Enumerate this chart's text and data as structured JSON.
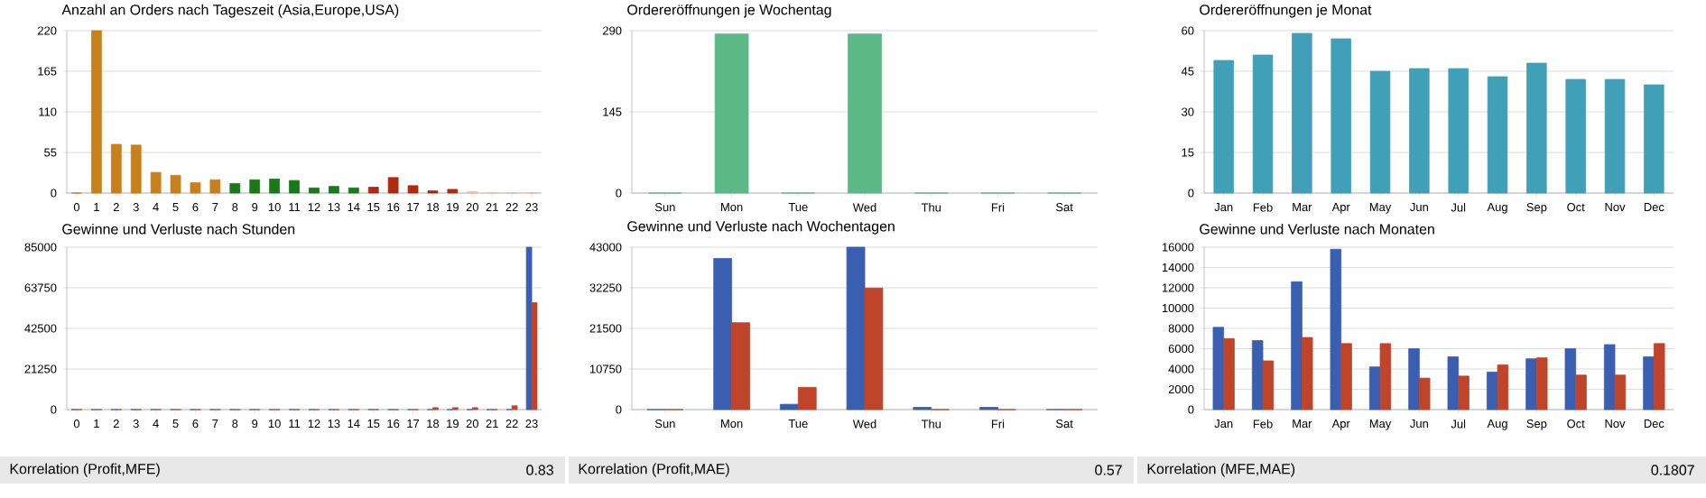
{
  "chart_data": [
    {
      "type": "bar",
      "title": "Anzahl an Orders nach Tageszeit (Asia,Europe,USA)",
      "categories": [
        "0",
        "1",
        "2",
        "3",
        "4",
        "5",
        "6",
        "7",
        "8",
        "9",
        "10",
        "11",
        "12",
        "13",
        "14",
        "15",
        "16",
        "17",
        "18",
        "19",
        "20",
        "21",
        "22",
        "23"
      ],
      "values": [
        0,
        220,
        66,
        65,
        28,
        24,
        14,
        18,
        13,
        18,
        19,
        17,
        7,
        9,
        7,
        8,
        21,
        10,
        3,
        5,
        2,
        0,
        0,
        0
      ],
      "colors": [
        "#c8801a",
        "#c8801a",
        "#c8801a",
        "#c8801a",
        "#c8801a",
        "#c8801a",
        "#c8801a",
        "#c8801a",
        "#1a7a1a",
        "#1a7a1a",
        "#1a7a1a",
        "#1a7a1a",
        "#1a7a1a",
        "#1a7a1a",
        "#1a7a1a",
        "#b02a10",
        "#b02a10",
        "#b02a10",
        "#b02a10",
        "#b02a10",
        "#f4b8a8",
        "#f4b8a8",
        "#f4b8a8",
        "#f4b8a8"
      ],
      "ylim": [
        0,
        220
      ],
      "yticks": [
        0,
        55,
        110,
        165,
        220
      ],
      "grid": "y"
    },
    {
      "type": "bar",
      "title": "Ordereröffnungen je Wochentag",
      "categories": [
        "Sun",
        "Mon",
        "Tue",
        "Wed",
        "Thu",
        "Fri",
        "Sat"
      ],
      "values": [
        0,
        284,
        0,
        284,
        0,
        0,
        0
      ],
      "color": "#5cb885",
      "ylim": [
        0,
        290
      ],
      "yticks": [
        0,
        145,
        290
      ],
      "grid": "y"
    },
    {
      "type": "bar",
      "title": "Ordereröffnungen je Monat",
      "categories": [
        "Jan",
        "Feb",
        "Mar",
        "Apr",
        "May",
        "Jun",
        "Jul",
        "Aug",
        "Sep",
        "Oct",
        "Nov",
        "Dec"
      ],
      "values": [
        49,
        51,
        59,
        57,
        45,
        46,
        46,
        43,
        48,
        42,
        42,
        40
      ],
      "color": "#3fa0b8",
      "ylim": [
        0,
        60
      ],
      "yticks": [
        0,
        15,
        30,
        45,
        60
      ],
      "grid": "y"
    },
    {
      "type": "bar",
      "title": "Gewinne und Verluste nach Stunden",
      "categories": [
        "0",
        "1",
        "2",
        "3",
        "4",
        "5",
        "6",
        "7",
        "8",
        "9",
        "10",
        "11",
        "12",
        "13",
        "14",
        "15",
        "16",
        "17",
        "18",
        "19",
        "20",
        "21",
        "22",
        "23"
      ],
      "series": [
        {
          "color": "#3a5fb0",
          "values": [
            0,
            0,
            0,
            0,
            0,
            0,
            0,
            0,
            0,
            0,
            0,
            0,
            0,
            0,
            0,
            0,
            0,
            0,
            0,
            0,
            0,
            0,
            0,
            85000
          ]
        },
        {
          "color": "#c0442a",
          "values": [
            0,
            0,
            0,
            0,
            0,
            0,
            0,
            0,
            0,
            0,
            0,
            0,
            0,
            0,
            0,
            0,
            0,
            0,
            1000,
            1000,
            1000,
            0,
            2000,
            56000
          ]
        }
      ],
      "ylim": [
        0,
        85000
      ],
      "yticks": [
        0,
        21250,
        42500,
        63750,
        85000
      ],
      "grid": "y",
      "annotations": [
        "Korrelation (Profit,MFE)",
        "0.83"
      ]
    },
    {
      "type": "bar",
      "title": "Gewinne und Verluste nach Wochentagen",
      "categories": [
        "Sun",
        "Mon",
        "Tue",
        "Wed",
        "Thu",
        "Fri",
        "Sat"
      ],
      "series": [
        {
          "color": "#3a5fb0",
          "values": [
            0,
            40000,
            1400,
            43000,
            600,
            600,
            0
          ]
        },
        {
          "color": "#c0442a",
          "values": [
            0,
            23000,
            5900,
            32200,
            0,
            0,
            0
          ]
        }
      ],
      "ylim": [
        0,
        43000
      ],
      "yticks": [
        0,
        10750,
        21500,
        32250,
        43000
      ],
      "grid": "y",
      "annotations": [
        "Korrelation (Profit,MAE)",
        "0.57"
      ]
    },
    {
      "type": "bar",
      "title": "Gewinne und Verluste nach Monaten",
      "categories": [
        "Jan",
        "Feb",
        "Mar",
        "Apr",
        "May",
        "Jun",
        "Jul",
        "Aug",
        "Sep",
        "Oct",
        "Nov",
        "Dec"
      ],
      "series": [
        {
          "color": "#3a5fb0",
          "values": [
            8100,
            6800,
            12600,
            15800,
            4200,
            6000,
            5200,
            3700,
            5000,
            6000,
            6400,
            5200
          ]
        },
        {
          "color": "#c0442a",
          "values": [
            7000,
            4800,
            7100,
            6500,
            6500,
            3100,
            3300,
            4400,
            5100,
            3400,
            3400,
            6500
          ]
        }
      ],
      "ylim": [
        0,
        16000
      ],
      "yticks": [
        0,
        2000,
        4000,
        6000,
        8000,
        10000,
        12000,
        14000,
        16000
      ],
      "grid": "y",
      "annotations": [
        "Korrelation (MFE,MAE)",
        "0.1807"
      ]
    }
  ]
}
